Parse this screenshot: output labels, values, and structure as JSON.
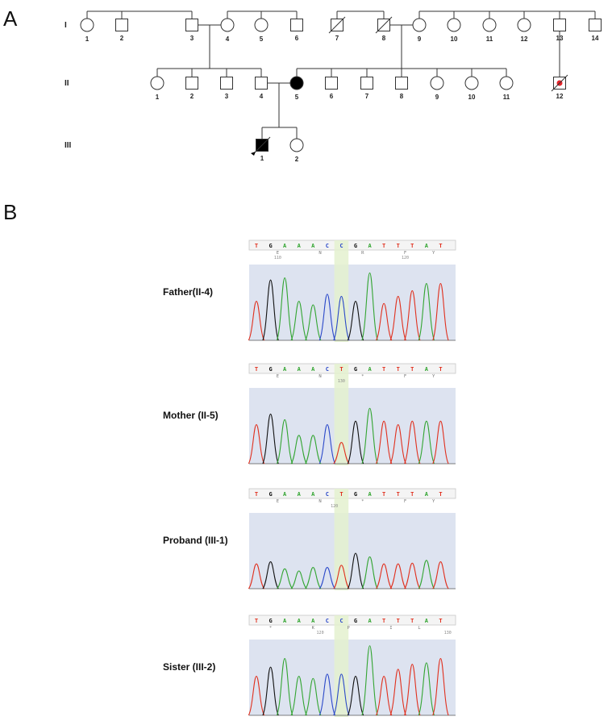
{
  "panels": {
    "a": "A",
    "b": "B"
  },
  "generations": [
    "I",
    "II",
    "III"
  ],
  "pedigree": {
    "gen1": [
      {
        "n": "1",
        "sex": "F"
      },
      {
        "n": "2",
        "sex": "M"
      },
      {
        "n": "3",
        "sex": "M"
      },
      {
        "n": "4",
        "sex": "F"
      },
      {
        "n": "5",
        "sex": "F"
      },
      {
        "n": "6",
        "sex": "M"
      },
      {
        "n": "7",
        "sex": "M",
        "deceased": true
      },
      {
        "n": "8",
        "sex": "M",
        "deceased": true
      },
      {
        "n": "9",
        "sex": "F"
      },
      {
        "n": "10",
        "sex": "F"
      },
      {
        "n": "11",
        "sex": "F"
      },
      {
        "n": "12",
        "sex": "F"
      },
      {
        "n": "13",
        "sex": "M"
      },
      {
        "n": "14",
        "sex": "M"
      }
    ],
    "gen2": [
      {
        "n": "1",
        "sex": "F"
      },
      {
        "n": "2",
        "sex": "M"
      },
      {
        "n": "3",
        "sex": "M"
      },
      {
        "n": "4",
        "sex": "M"
      },
      {
        "n": "5",
        "sex": "F",
        "affected": true
      },
      {
        "n": "6",
        "sex": "M"
      },
      {
        "n": "7",
        "sex": "M"
      },
      {
        "n": "8",
        "sex": "M"
      },
      {
        "n": "9",
        "sex": "F"
      },
      {
        "n": "10",
        "sex": "F"
      },
      {
        "n": "11",
        "sex": "F"
      },
      {
        "n": "12",
        "sex": "M",
        "deceased": true,
        "carrier_dot": true
      }
    ],
    "gen3": [
      {
        "n": "1",
        "sex": "M",
        "affected": true,
        "deceased": true,
        "proband": true
      },
      {
        "n": "2",
        "sex": "F"
      }
    ]
  },
  "traces": [
    {
      "label": "Father(II-4)",
      "bases": [
        "T",
        "G",
        "A",
        "A",
        "A",
        "C",
        "C",
        "G",
        "A",
        "T",
        "T",
        "T",
        "A",
        "T"
      ],
      "aa": [
        {
          "i": 1.5,
          "t": "E"
        },
        {
          "i": 4.5,
          "t": "N"
        },
        {
          "i": 7.5,
          "t": "R"
        },
        {
          "i": 10.5,
          "t": "F"
        },
        {
          "i": 12.5,
          "t": "Y"
        }
      ],
      "pos": [
        {
          "i": 1.5,
          "t": "110"
        },
        {
          "i": 10.5,
          "t": "120"
        }
      ]
    },
    {
      "label": "Mother (II-5)",
      "bases": [
        "T",
        "G",
        "A",
        "A",
        "A",
        "C",
        "T",
        "G",
        "A",
        "T",
        "T",
        "T",
        "A",
        "T"
      ],
      "aa": [
        {
          "i": 1.5,
          "t": "E"
        },
        {
          "i": 4.5,
          "t": "N"
        },
        {
          "i": 7.5,
          "t": "*"
        },
        {
          "i": 10.5,
          "t": "F"
        },
        {
          "i": 12.5,
          "t": "Y"
        }
      ],
      "pos": [
        {
          "i": 6,
          "t": "130"
        }
      ]
    },
    {
      "label": "Proband (III-1)",
      "bases": [
        "T",
        "G",
        "A",
        "A",
        "A",
        "C",
        "T",
        "G",
        "A",
        "T",
        "T",
        "T",
        "A",
        "T"
      ],
      "aa": [
        {
          "i": 1.5,
          "t": "E"
        },
        {
          "i": 4.5,
          "t": "N"
        },
        {
          "i": 7.5,
          "t": "*"
        },
        {
          "i": 10.5,
          "t": "F"
        },
        {
          "i": 12.5,
          "t": "Y"
        }
      ],
      "pos": [
        {
          "i": 5.5,
          "t": "120"
        }
      ]
    },
    {
      "label": "Sister (III-2)",
      "bases": [
        "T",
        "G",
        "A",
        "A",
        "A",
        "C",
        "C",
        "G",
        "A",
        "T",
        "T",
        "T",
        "A",
        "T"
      ],
      "aa": [
        {
          "i": 1,
          "t": "*"
        },
        {
          "i": 4,
          "t": "K"
        },
        {
          "i": 6.5,
          "t": "P"
        },
        {
          "i": 9.5,
          "t": "I"
        },
        {
          "i": 11.5,
          "t": "L"
        }
      ],
      "pos": [
        {
          "i": 4.5,
          "t": "120"
        },
        {
          "i": 13.5,
          "t": "130"
        }
      ]
    }
  ],
  "colors": {
    "A": "#33a532",
    "C": "#2b49c9",
    "G": "#111111",
    "T": "#e0301e",
    "highlight": "#e4f1cf",
    "quality": "#dde3f0",
    "carrier_dot": "#e8242b"
  }
}
